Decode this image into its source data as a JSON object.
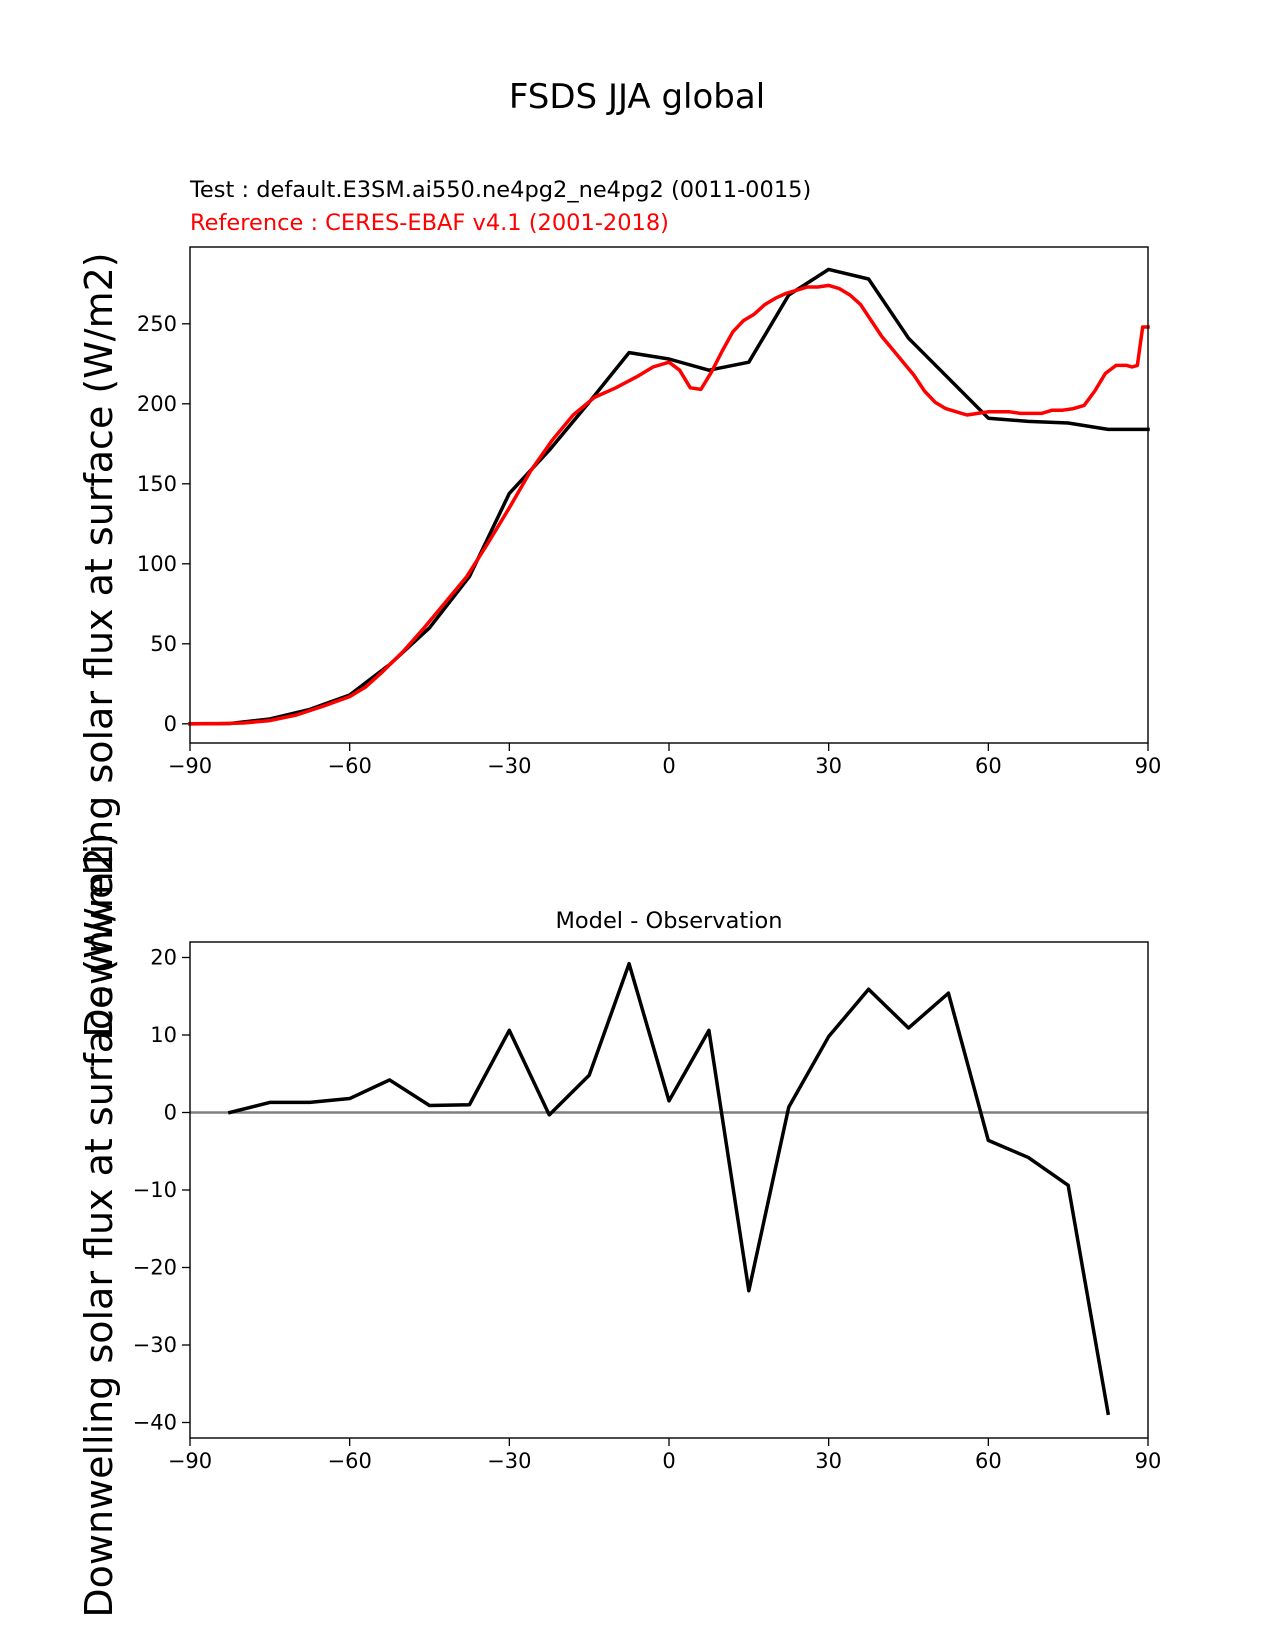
{
  "figure": {
    "title": "FSDS JJA global"
  },
  "colors": {
    "test": "#000000",
    "reference": "#ff0000",
    "zero_line": "#808080",
    "axes": "#000000"
  },
  "chart_data": [
    {
      "type": "line",
      "subtitle_test": "Test : default.E3SM.ai550.ne4pg2_ne4pg2 (0011-0015)",
      "subtitle_reference": "Reference : CERES-EBAF v4.1 (2001-2018)",
      "xlabel": "",
      "ylabel": "Downwelling solar flux at surface (W/m2)",
      "xlim": [
        -90,
        90
      ],
      "ylim": [
        -12,
        298
      ],
      "xticks": [
        -90,
        -60,
        -30,
        0,
        30,
        60,
        90
      ],
      "xtick_labels": [
        "−90",
        "−60",
        "−30",
        "0",
        "30",
        "60",
        "90"
      ],
      "yticks": [
        0,
        50,
        100,
        150,
        200,
        250
      ],
      "ytick_labels": [
        "0",
        "50",
        "100",
        "150",
        "200",
        "250"
      ],
      "grid": false,
      "series": [
        {
          "role": "test",
          "x": [
            -90,
            -82.5,
            -75,
            -67.5,
            -60,
            -52.5,
            -45,
            -37.5,
            -30,
            -22.5,
            -15,
            -7.5,
            0,
            7.5,
            15,
            22.5,
            30,
            37.5,
            45,
            52.5,
            60,
            67.5,
            75,
            82.5,
            90
          ],
          "y": [
            0,
            0.2,
            3,
            9,
            18,
            37,
            60,
            92,
            144,
            171,
            201,
            232,
            228,
            221,
            226,
            268,
            284,
            278,
            241,
            216,
            191,
            189,
            188,
            184,
            184
          ]
        },
        {
          "role": "reference",
          "x": [
            -90,
            -85,
            -80,
            -75,
            -70,
            -65,
            -60,
            -57,
            -54,
            -50,
            -46,
            -42,
            -38,
            -34,
            -30,
            -26,
            -22,
            -18,
            -14,
            -10,
            -6,
            -3,
            0,
            2,
            4,
            6,
            8,
            10,
            12,
            14,
            16,
            18,
            20,
            22,
            24,
            26,
            28,
            30,
            32,
            34,
            36,
            38,
            40,
            42,
            44,
            46,
            48,
            50,
            52,
            54,
            56,
            58,
            60,
            62,
            64,
            66,
            68,
            70,
            72,
            74,
            76,
            78,
            80,
            82,
            84,
            86,
            87,
            88,
            89,
            90
          ],
          "y": [
            0,
            0,
            0.5,
            2,
            5.5,
            11,
            17,
            23,
            32,
            45,
            60,
            76,
            92,
            113,
            135,
            158,
            177,
            193,
            204,
            210,
            217,
            223,
            226,
            221,
            210,
            209,
            220,
            233,
            245,
            252,
            256,
            262,
            266,
            269,
            271,
            273,
            273,
            274,
            272,
            268,
            262,
            252,
            242,
            234,
            226,
            218,
            208,
            201,
            197,
            195,
            193,
            194,
            195,
            195,
            195,
            194,
            194,
            194,
            196,
            196,
            197,
            199,
            208,
            219,
            224,
            224,
            223,
            224,
            248,
            248
          ]
        }
      ]
    },
    {
      "type": "line",
      "title": "Model - Observation",
      "xlabel": "",
      "ylabel": "Downwelling solar flux at surface (W/m2)",
      "xlim": [
        -90,
        90
      ],
      "ylim": [
        -42,
        22
      ],
      "xticks": [
        -90,
        -60,
        -30,
        0,
        30,
        60,
        90
      ],
      "xtick_labels": [
        "−90",
        "−60",
        "−30",
        "0",
        "30",
        "60",
        "90"
      ],
      "yticks": [
        -40,
        -30,
        -20,
        -10,
        0,
        10,
        20
      ],
      "ytick_labels": [
        "−40",
        "−30",
        "−20",
        "−10",
        "0",
        "10",
        "20"
      ],
      "grid": false,
      "zero_line": 0,
      "series": [
        {
          "role": "difference",
          "x": [
            -82.5,
            -75,
            -67.5,
            -60,
            -52.5,
            -45,
            -37.5,
            -30,
            -22.5,
            -15,
            -7.5,
            0,
            7.5,
            15,
            22.5,
            30,
            37.5,
            45,
            52.5,
            60,
            67.5,
            75,
            82.5
          ],
          "y": [
            0,
            1.3,
            1.3,
            1.8,
            4.2,
            0.9,
            1.0,
            10.6,
            -0.3,
            4.8,
            19.2,
            1.5,
            10.6,
            -23.0,
            0.7,
            9.8,
            15.9,
            10.9,
            15.4,
            -3.6,
            -5.8,
            -9.4,
            -38.8
          ]
        }
      ]
    }
  ]
}
